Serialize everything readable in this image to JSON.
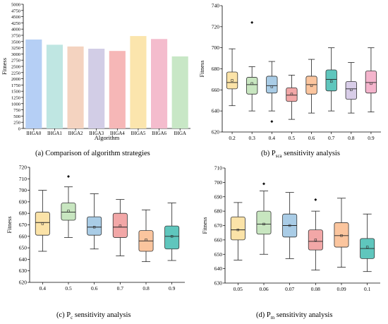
{
  "chart_data": [
    {
      "id": "a",
      "type": "bar",
      "categories": [
        "IHGA0",
        "IHGA1",
        "IHGA2",
        "IHGA3",
        "IHGA4",
        "IHGA5",
        "IHGA6",
        "IHGA"
      ],
      "values": [
        3580,
        3370,
        3300,
        3210,
        3120,
        3720,
        3600,
        2900
      ],
      "colors": [
        "#b5cff5",
        "#bfe6e2",
        "#f4d3c0",
        "#d2cde6",
        "#f6b7b7",
        "#fbe5ad",
        "#f4bccd",
        "#c8e7c6"
      ],
      "xlabel": "Algorithm",
      "ylabel": "Fitness",
      "ylim": [
        0,
        5000
      ],
      "yticks": [
        0,
        250,
        500,
        750,
        1000,
        1250,
        1500,
        1750,
        2000,
        2250,
        2500,
        2750,
        3000,
        3250,
        3500,
        3750,
        4000,
        4250,
        4500,
        4750,
        5000
      ],
      "grid": false,
      "caption": "(a) Comparison of algorithm strategies"
    },
    {
      "id": "b",
      "type": "box",
      "categories": [
        "0.2",
        "0.3",
        "0.4",
        "0.5",
        "0.6",
        "0.7",
        "0.8",
        "0.9"
      ],
      "ylabel": "Fitness",
      "ylim": [
        620,
        740
      ],
      "yticks": [
        620,
        640,
        660,
        680,
        700,
        720,
        740
      ],
      "boxes": [
        {
          "whislo": 645,
          "q1": 661,
          "med": 667,
          "q3": 677,
          "whishi": 699,
          "mean": 669,
          "outliers": []
        },
        {
          "whislo": 640,
          "q1": 656,
          "med": 665,
          "q3": 672,
          "whishi": 682,
          "mean": 666,
          "outliers": [
            724
          ]
        },
        {
          "whislo": 640,
          "q1": 657,
          "med": 664,
          "q3": 673,
          "whishi": 687,
          "mean": 663,
          "outliers": [
            630
          ]
        },
        {
          "whislo": 632,
          "q1": 649,
          "med": 655,
          "q3": 662,
          "whishi": 674,
          "mean": 656,
          "outliers": []
        },
        {
          "whislo": 638,
          "q1": 656,
          "med": 665,
          "q3": 673,
          "whishi": 689,
          "mean": 664,
          "outliers": []
        },
        {
          "whislo": 640,
          "q1": 659,
          "med": 670,
          "q3": 679,
          "whishi": 700,
          "mean": 668,
          "outliers": []
        },
        {
          "whislo": 638,
          "q1": 651,
          "med": 661,
          "q3": 668,
          "whishi": 686,
          "mean": 660,
          "outliers": []
        },
        {
          "whislo": 639,
          "q1": 657,
          "med": 667,
          "q3": 678,
          "whishi": 700,
          "mean": 666,
          "outliers": []
        }
      ],
      "colors": [
        "#fbe3a8",
        "#c8e6c0",
        "#a9cce6",
        "#f2a7a7",
        "#fbc59e",
        "#5fc6bd",
        "#d8cde8",
        "#f4b4cc"
      ],
      "caption_main": "(b) P",
      "caption_sub": "sca",
      "caption_rest": " sensitivity analysis"
    },
    {
      "id": "c",
      "type": "box",
      "categories": [
        "0.4",
        "0.5",
        "0.6",
        "0.7",
        "0.8",
        "0.9"
      ],
      "ylabel": "Fitness",
      "ylim": [
        620,
        720
      ],
      "yticks": [
        620,
        630,
        640,
        650,
        660,
        670,
        680,
        690,
        700,
        710,
        720
      ],
      "boxes": [
        {
          "whislo": 647,
          "q1": 661,
          "med": 672,
          "q3": 681,
          "whishi": 700,
          "mean": 671,
          "outliers": []
        },
        {
          "whislo": 659,
          "q1": 674,
          "med": 681,
          "q3": 689,
          "whishi": 703,
          "mean": 682,
          "outliers": [
            712
          ]
        },
        {
          "whislo": 649,
          "q1": 661,
          "med": 668,
          "q3": 677,
          "whishi": 697,
          "mean": 668,
          "outliers": []
        },
        {
          "whislo": 643,
          "q1": 659,
          "med": 668,
          "q3": 680,
          "whishi": 692,
          "mean": 669,
          "outliers": []
        },
        {
          "whislo": 638,
          "q1": 647,
          "med": 656,
          "q3": 665,
          "whishi": 683,
          "mean": 657,
          "outliers": []
        },
        {
          "whislo": 639,
          "q1": 649,
          "med": 660,
          "q3": 669,
          "whishi": 689,
          "mean": 660,
          "outliers": []
        }
      ],
      "colors": [
        "#fbe3a8",
        "#c8e6c0",
        "#a9cce6",
        "#f2a7a7",
        "#fbc59e",
        "#5fc6bd"
      ],
      "caption_main": "(c) P",
      "caption_sub": "c",
      "caption_rest": " sensitivity analysis"
    },
    {
      "id": "d",
      "type": "box",
      "categories": [
        "0.05",
        "0.06",
        "0.07",
        "0.08",
        "0.09",
        "0.1"
      ],
      "ylabel": "Fitness",
      "ylim": [
        630,
        710
      ],
      "yticks": [
        630,
        640,
        650,
        660,
        670,
        680,
        690,
        700,
        710
      ],
      "boxes": [
        {
          "whislo": 646,
          "q1": 660,
          "med": 667,
          "q3": 676,
          "whishi": 686,
          "mean": 667,
          "outliers": []
        },
        {
          "whislo": 650,
          "q1": 664,
          "med": 671,
          "q3": 680,
          "whishi": 694,
          "mean": 671,
          "outliers": [
            699
          ]
        },
        {
          "whislo": 647,
          "q1": 662,
          "med": 670,
          "q3": 678,
          "whishi": 693,
          "mean": 670,
          "outliers": []
        },
        {
          "whislo": 639,
          "q1": 653,
          "med": 659,
          "q3": 667,
          "whishi": 680,
          "mean": 660,
          "outliers": [
            688
          ]
        },
        {
          "whislo": 641,
          "q1": 655,
          "med": 663,
          "q3": 672,
          "whishi": 689,
          "mean": 663,
          "outliers": []
        },
        {
          "whislo": 638,
          "q1": 647,
          "med": 654,
          "q3": 661,
          "whishi": 678,
          "mean": 655,
          "outliers": []
        }
      ],
      "colors": [
        "#fbe3a8",
        "#c8e6c0",
        "#a9cce6",
        "#f2a7a7",
        "#fbc59e",
        "#5fc6bd"
      ],
      "caption_main": "(d) P",
      "caption_sub": "m",
      "caption_rest": " sensitivity analysis"
    }
  ]
}
